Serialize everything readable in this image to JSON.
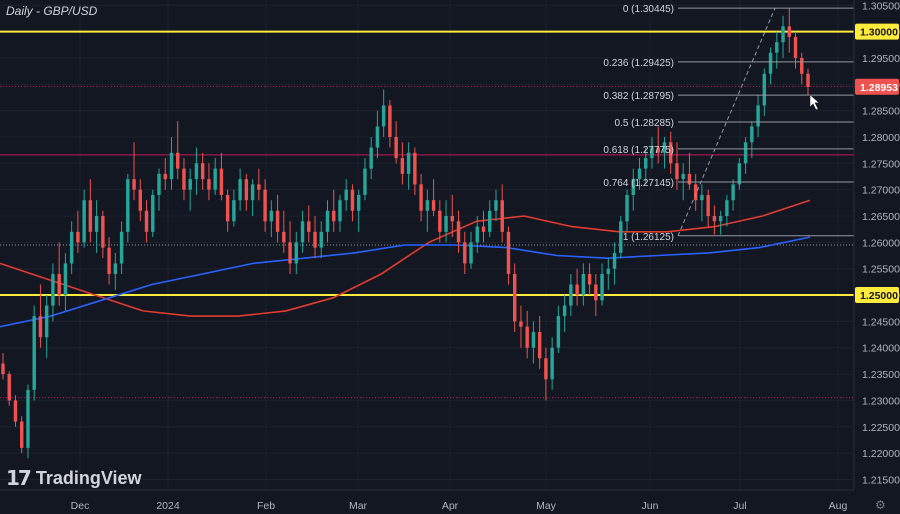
{
  "header": {
    "title": "Daily - GBP/USD"
  },
  "branding": {
    "logo_text": "TradingView"
  },
  "settings_icon": "gear-icon",
  "chart_data": {
    "type": "candlestick",
    "title": "Daily - GBP/USD",
    "symbol": "GBP/USD",
    "timeframe": "Daily",
    "ylim": [
      1.213,
      1.306
    ],
    "y_ticks": [
      "1.30500",
      "1.30000",
      "1.29500",
      "1.29000",
      "1.28500",
      "1.28000",
      "1.27500",
      "1.27000",
      "1.26500",
      "1.26000",
      "1.25500",
      "1.25000",
      "1.24500",
      "1.24000",
      "1.23500",
      "1.23000",
      "1.22500",
      "1.22000",
      "1.21500"
    ],
    "x_ticks": [
      "Dec",
      "2024",
      "Feb",
      "Mar",
      "Apr",
      "May",
      "Jun",
      "Jul",
      "Aug"
    ],
    "current_price": "1.28953",
    "colors": {
      "up": "#26a69a",
      "down": "#ef5350",
      "background": "#131722",
      "ma_fast": "#e03c31",
      "ma_slow": "#2962ff",
      "key_level": "#ffeb3b",
      "resistance": "#c2185b"
    },
    "key_levels": [
      {
        "value": 1.3,
        "label": "1.30000"
      },
      {
        "value": 1.25,
        "label": "1.25000"
      }
    ],
    "horizontal_lines": [
      1.2896,
      1.2766,
      1.2305,
      1.2595
    ],
    "fibonacci": {
      "from_date_label": "Jun",
      "levels": [
        {
          "ratio": "0",
          "price": "1.30445",
          "value": 1.30445
        },
        {
          "ratio": "0.236",
          "price": "1.29425",
          "value": 1.29425
        },
        {
          "ratio": "0.382",
          "price": "1.28795",
          "value": 1.28795
        },
        {
          "ratio": "0.5",
          "price": "1.28285",
          "value": 1.28285
        },
        {
          "ratio": "0.618",
          "price": "1.27775",
          "value": 1.27775
        },
        {
          "ratio": "0.764",
          "price": "1.27145",
          "value": 1.27145
        },
        {
          "ratio": "1",
          "price": "1.26125",
          "value": 1.26125
        }
      ]
    },
    "ma_fast": [
      1.256,
      1.253,
      1.25,
      1.247,
      1.246,
      1.246,
      1.247,
      1.2495,
      1.254,
      1.26,
      1.264,
      1.265,
      1.263,
      1.262,
      1.262,
      1.263,
      1.265,
      1.268
    ],
    "ma_slow": [
      1.244,
      1.246,
      1.249,
      1.252,
      1.254,
      1.256,
      1.257,
      1.258,
      1.2595,
      1.2595,
      1.259,
      1.2575,
      1.257,
      1.2575,
      1.258,
      1.259,
      1.261
    ],
    "candles_ohlc": [
      [
        1.237,
        1.239,
        1.234,
        1.235
      ],
      [
        1.235,
        1.2355,
        1.229,
        1.23
      ],
      [
        1.23,
        1.231,
        1.225,
        1.226
      ],
      [
        1.226,
        1.227,
        1.22,
        1.221
      ],
      [
        1.221,
        1.233,
        1.219,
        1.232
      ],
      [
        1.232,
        1.248,
        1.23,
        1.246
      ],
      [
        1.246,
        1.252,
        1.24,
        1.242
      ],
      [
        1.242,
        1.25,
        1.238,
        1.248
      ],
      [
        1.248,
        1.256,
        1.245,
        1.254
      ],
      [
        1.254,
        1.26,
        1.248,
        1.25
      ],
      [
        1.25,
        1.258,
        1.247,
        1.256
      ],
      [
        1.256,
        1.264,
        1.254,
        1.262
      ],
      [
        1.262,
        1.266,
        1.258,
        1.26
      ],
      [
        1.26,
        1.27,
        1.259,
        1.268
      ],
      [
        1.268,
        1.272,
        1.26,
        1.262
      ],
      [
        1.262,
        1.268,
        1.258,
        1.265
      ],
      [
        1.265,
        1.266,
        1.257,
        1.259
      ],
      [
        1.259,
        1.261,
        1.252,
        1.254
      ],
      [
        1.254,
        1.258,
        1.251,
        1.256
      ],
      [
        1.256,
        1.264,
        1.254,
        1.262
      ],
      [
        1.262,
        1.273,
        1.26,
        1.272
      ],
      [
        1.272,
        1.279,
        1.268,
        1.27
      ],
      [
        1.27,
        1.272,
        1.264,
        1.266
      ],
      [
        1.266,
        1.268,
        1.26,
        1.262
      ],
      [
        1.262,
        1.27,
        1.261,
        1.269
      ],
      [
        1.269,
        1.274,
        1.266,
        1.273
      ],
      [
        1.273,
        1.276,
        1.27,
        1.272
      ],
      [
        1.272,
        1.28,
        1.27,
        1.277
      ],
      [
        1.277,
        1.283,
        1.272,
        1.274
      ],
      [
        1.274,
        1.276,
        1.268,
        1.27
      ],
      [
        1.27,
        1.274,
        1.266,
        1.272
      ],
      [
        1.272,
        1.278,
        1.269,
        1.275
      ],
      [
        1.275,
        1.277,
        1.27,
        1.272
      ],
      [
        1.272,
        1.275,
        1.268,
        1.27
      ],
      [
        1.27,
        1.276,
        1.269,
        1.274
      ],
      [
        1.274,
        1.277,
        1.268,
        1.269
      ],
      [
        1.269,
        1.27,
        1.262,
        1.264
      ],
      [
        1.264,
        1.27,
        1.263,
        1.268
      ],
      [
        1.268,
        1.274,
        1.266,
        1.272
      ],
      [
        1.272,
        1.273,
        1.266,
        1.268
      ],
      [
        1.268,
        1.272,
        1.265,
        1.271
      ],
      [
        1.271,
        1.274,
        1.268,
        1.27
      ],
      [
        1.27,
        1.272,
        1.262,
        1.264
      ],
      [
        1.264,
        1.268,
        1.261,
        1.266
      ],
      [
        1.266,
        1.269,
        1.26,
        1.262
      ],
      [
        1.262,
        1.266,
        1.258,
        1.26
      ],
      [
        1.26,
        1.264,
        1.254,
        1.256
      ],
      [
        1.256,
        1.262,
        1.254,
        1.26
      ],
      [
        1.26,
        1.266,
        1.258,
        1.264
      ],
      [
        1.264,
        1.267,
        1.26,
        1.262
      ],
      [
        1.262,
        1.265,
        1.257,
        1.259
      ],
      [
        1.259,
        1.264,
        1.257,
        1.262
      ],
      [
        1.262,
        1.268,
        1.26,
        1.266
      ],
      [
        1.266,
        1.27,
        1.262,
        1.264
      ],
      [
        1.264,
        1.269,
        1.262,
        1.268
      ],
      [
        1.268,
        1.272,
        1.266,
        1.27
      ],
      [
        1.27,
        1.271,
        1.264,
        1.266
      ],
      [
        1.266,
        1.27,
        1.262,
        1.269
      ],
      [
        1.269,
        1.276,
        1.268,
        1.274
      ],
      [
        1.274,
        1.28,
        1.272,
        1.278
      ],
      [
        1.278,
        1.285,
        1.276,
        1.282
      ],
      [
        1.282,
        1.289,
        1.28,
        1.286
      ],
      [
        1.286,
        1.287,
        1.278,
        1.28
      ],
      [
        1.28,
        1.283,
        1.275,
        1.276
      ],
      [
        1.276,
        1.279,
        1.271,
        1.273
      ],
      [
        1.273,
        1.279,
        1.27,
        1.277
      ],
      [
        1.277,
        1.278,
        1.269,
        1.271
      ],
      [
        1.271,
        1.273,
        1.264,
        1.266
      ],
      [
        1.266,
        1.27,
        1.262,
        1.268
      ],
      [
        1.268,
        1.272,
        1.265,
        1.266
      ],
      [
        1.266,
        1.268,
        1.26,
        1.262
      ],
      [
        1.262,
        1.268,
        1.26,
        1.265
      ],
      [
        1.265,
        1.269,
        1.261,
        1.264
      ],
      [
        1.264,
        1.266,
        1.258,
        1.26
      ],
      [
        1.26,
        1.262,
        1.254,
        1.256
      ],
      [
        1.256,
        1.262,
        1.255,
        1.26
      ],
      [
        1.26,
        1.265,
        1.258,
        1.263
      ],
      [
        1.263,
        1.266,
        1.26,
        1.262
      ],
      [
        1.262,
        1.268,
        1.261,
        1.266
      ],
      [
        1.266,
        1.27,
        1.264,
        1.268
      ],
      [
        1.268,
        1.271,
        1.26,
        1.262
      ],
      [
        1.262,
        1.263,
        1.252,
        1.254
      ],
      [
        1.254,
        1.256,
        1.243,
        1.245
      ],
      [
        1.245,
        1.248,
        1.24,
        1.244
      ],
      [
        1.244,
        1.247,
        1.238,
        1.24
      ],
      [
        1.24,
        1.245,
        1.237,
        1.243
      ],
      [
        1.243,
        1.246,
        1.236,
        1.238
      ],
      [
        1.238,
        1.24,
        1.23,
        1.234
      ],
      [
        1.234,
        1.242,
        1.232,
        1.24
      ],
      [
        1.24,
        1.248,
        1.239,
        1.246
      ],
      [
        1.246,
        1.25,
        1.243,
        1.248
      ],
      [
        1.248,
        1.254,
        1.246,
        1.252
      ],
      [
        1.252,
        1.255,
        1.248,
        1.25
      ],
      [
        1.25,
        1.256,
        1.248,
        1.254
      ],
      [
        1.254,
        1.256,
        1.25,
        1.252
      ],
      [
        1.252,
        1.254,
        1.246,
        1.249
      ],
      [
        1.249,
        1.256,
        1.248,
        1.254
      ],
      [
        1.254,
        1.257,
        1.251,
        1.255
      ],
      [
        1.255,
        1.26,
        1.252,
        1.258
      ],
      [
        1.258,
        1.265,
        1.257,
        1.264
      ],
      [
        1.264,
        1.27,
        1.262,
        1.269
      ],
      [
        1.269,
        1.274,
        1.266,
        1.272
      ],
      [
        1.272,
        1.276,
        1.27,
        1.274
      ],
      [
        1.274,
        1.278,
        1.271,
        1.276
      ],
      [
        1.276,
        1.28,
        1.274,
        1.278
      ],
      [
        1.278,
        1.282,
        1.275,
        1.277
      ],
      [
        1.277,
        1.28,
        1.274,
        1.279
      ],
      [
        1.279,
        1.281,
        1.273,
        1.275
      ],
      [
        1.275,
        1.279,
        1.27,
        1.272
      ],
      [
        1.272,
        1.275,
        1.268,
        1.273
      ],
      [
        1.273,
        1.277,
        1.27,
        1.271
      ],
      [
        1.271,
        1.273,
        1.266,
        1.268
      ],
      [
        1.268,
        1.271,
        1.264,
        1.269
      ],
      [
        1.269,
        1.27,
        1.263,
        1.265
      ],
      [
        1.265,
        1.267,
        1.2615,
        1.264
      ],
      [
        1.264,
        1.266,
        1.2615,
        1.265
      ],
      [
        1.265,
        1.269,
        1.263,
        1.268
      ],
      [
        1.268,
        1.272,
        1.266,
        1.271
      ],
      [
        1.271,
        1.276,
        1.27,
        1.275
      ],
      [
        1.275,
        1.28,
        1.273,
        1.279
      ],
      [
        1.279,
        1.283,
        1.276,
        1.282
      ],
      [
        1.282,
        1.288,
        1.28,
        1.286
      ],
      [
        1.286,
        1.293,
        1.284,
        1.292
      ],
      [
        1.292,
        1.297,
        1.29,
        1.296
      ],
      [
        1.296,
        1.3,
        1.293,
        1.298
      ],
      [
        1.298,
        1.303,
        1.295,
        1.301
      ],
      [
        1.301,
        1.3044,
        1.296,
        1.299
      ],
      [
        1.299,
        1.3,
        1.293,
        1.295
      ],
      [
        1.295,
        1.296,
        1.29,
        1.292
      ],
      [
        1.292,
        1.293,
        1.288,
        1.2895
      ]
    ]
  }
}
